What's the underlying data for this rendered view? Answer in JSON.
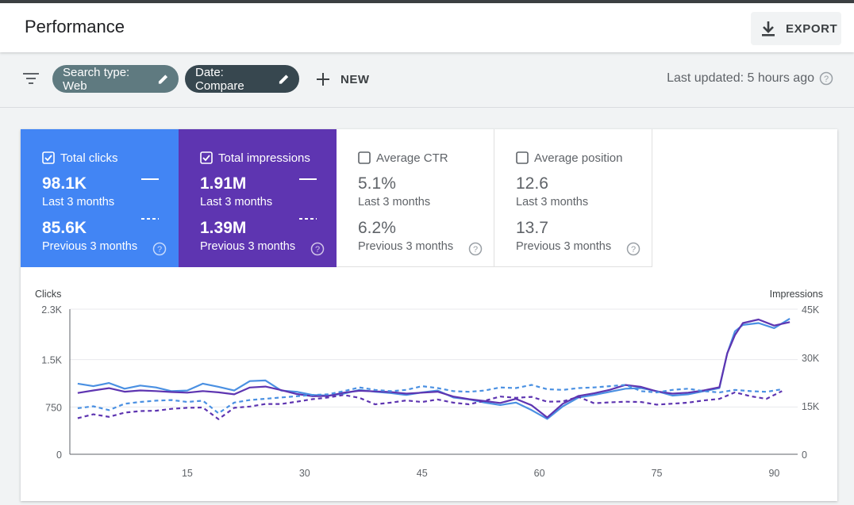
{
  "header": {
    "title": "Performance",
    "export_label": "EXPORT"
  },
  "filters": {
    "search_type_chip": "Search type: Web",
    "date_chip": "Date: Compare",
    "new_label": "NEW",
    "last_updated": "Last updated: 5 hours ago"
  },
  "metrics": [
    {
      "label": "Total clicks",
      "current": "98.1K",
      "current_period": "Last 3 months",
      "previous": "85.6K",
      "previous_period": "Previous 3 months",
      "checked": true
    },
    {
      "label": "Total impressions",
      "current": "1.91M",
      "current_period": "Last 3 months",
      "previous": "1.39M",
      "previous_period": "Previous 3 months",
      "checked": true
    },
    {
      "label": "Average CTR",
      "current": "5.1%",
      "current_period": "Last 3 months",
      "previous": "6.2%",
      "previous_period": "Previous 3 months",
      "checked": false
    },
    {
      "label": "Average position",
      "current": "12.6",
      "current_period": "Last 3 months",
      "previous": "13.7",
      "previous_period": "Previous 3 months",
      "checked": false
    }
  ],
  "colors": {
    "clicks": "#4285f4",
    "impressions": "#5e35b1",
    "clicks_line": "#4a90e2",
    "impressions_line": "#5e35b1"
  },
  "chart_data": {
    "type": "line",
    "title": "",
    "ylabel_left": "Clicks",
    "ylabel_right": "Impressions",
    "left_axis": {
      "ylim": [
        0,
        2300
      ],
      "ticks": [
        0,
        750,
        1500,
        2300
      ],
      "tick_labels": [
        "0",
        "750",
        "1.5K",
        "2.3K"
      ]
    },
    "right_axis": {
      "ylim": [
        0,
        45000
      ],
      "ticks": [
        0,
        15000,
        30000,
        45000
      ],
      "tick_labels": [
        "0",
        "15K",
        "30K",
        "45K"
      ]
    },
    "x_ticks": [
      15,
      30,
      45,
      60,
      75,
      90
    ],
    "series": [
      {
        "name": "Clicks (Last 3 months)",
        "axis": "left",
        "style": "solid",
        "color": "#4a90e2",
        "x": [
          1,
          3,
          5,
          7,
          9,
          11,
          13,
          15,
          17,
          19,
          21,
          23,
          25,
          27,
          29,
          31,
          33,
          35,
          37,
          39,
          41,
          43,
          45,
          47,
          49,
          51,
          53,
          55,
          57,
          59,
          61,
          63,
          65,
          67,
          69,
          71,
          73,
          75,
          77,
          79,
          81,
          83,
          84,
          85,
          86,
          88,
          90,
          92
        ],
        "y": [
          1120,
          1080,
          1130,
          1040,
          1090,
          1060,
          1000,
          1010,
          1120,
          1070,
          1010,
          1160,
          1170,
          1010,
          990,
          940,
          930,
          960,
          1020,
          990,
          970,
          940,
          980,
          1010,
          900,
          870,
          820,
          780,
          820,
          700,
          560,
          760,
          900,
          940,
          990,
          1040,
          1050,
          1000,
          930,
          950,
          1000,
          1050,
          1600,
          1950,
          2050,
          2080,
          2000,
          2150
        ]
      },
      {
        "name": "Impressions (Last 3 months)",
        "axis": "right",
        "style": "solid",
        "color": "#5e35b1",
        "x": [
          1,
          3,
          5,
          7,
          9,
          11,
          13,
          15,
          17,
          19,
          21,
          23,
          25,
          27,
          29,
          31,
          33,
          35,
          37,
          39,
          41,
          43,
          45,
          47,
          49,
          51,
          53,
          55,
          57,
          59,
          61,
          63,
          65,
          67,
          69,
          71,
          73,
          75,
          77,
          79,
          81,
          83,
          84,
          85,
          86,
          88,
          90,
          92
        ],
        "y": [
          19000,
          19800,
          20500,
          19400,
          19800,
          19600,
          19300,
          19100,
          19600,
          19200,
          18600,
          20700,
          21000,
          19900,
          18700,
          18000,
          18100,
          19100,
          19700,
          19500,
          19300,
          18800,
          19100,
          19400,
          17900,
          17100,
          16500,
          15900,
          17200,
          15200,
          11400,
          15700,
          18100,
          18900,
          20000,
          21500,
          20900,
          19500,
          18800,
          19100,
          19800,
          20800,
          31300,
          37000,
          40700,
          41800,
          39900,
          41000
        ]
      },
      {
        "name": "Clicks (Previous 3 months)",
        "axis": "left",
        "style": "dashed",
        "color": "#4a90e2",
        "x": [
          1,
          3,
          5,
          7,
          9,
          11,
          13,
          15,
          17,
          19,
          21,
          23,
          25,
          27,
          29,
          31,
          33,
          35,
          37,
          39,
          41,
          43,
          45,
          47,
          49,
          51,
          53,
          55,
          57,
          59,
          61,
          63,
          65,
          67,
          69,
          71,
          73,
          75,
          77,
          79,
          81,
          83,
          85,
          87,
          89,
          91
        ],
        "y": [
          730,
          760,
          700,
          800,
          830,
          850,
          860,
          830,
          850,
          650,
          820,
          860,
          880,
          900,
          920,
          940,
          950,
          1000,
          1060,
          1020,
          1000,
          1020,
          1080,
          1050,
          1000,
          990,
          1010,
          1060,
          1050,
          1100,
          1030,
          1020,
          1050,
          1060,
          1080,
          1100,
          1000,
          980,
          1020,
          1040,
          1000,
          980,
          1020,
          1000,
          990,
          1030
        ]
      },
      {
        "name": "Impressions (Previous 3 months)",
        "axis": "right",
        "style": "dashed",
        "color": "#5e35b1",
        "x": [
          1,
          3,
          5,
          7,
          9,
          11,
          13,
          15,
          17,
          19,
          21,
          23,
          25,
          27,
          29,
          31,
          33,
          35,
          37,
          39,
          41,
          43,
          45,
          47,
          49,
          51,
          53,
          55,
          57,
          59,
          61,
          63,
          65,
          67,
          69,
          71,
          73,
          75,
          77,
          79,
          81,
          83,
          85,
          87,
          89,
          91
        ],
        "y": [
          11200,
          12400,
          11600,
          12900,
          13400,
          13500,
          14100,
          14400,
          14500,
          10900,
          14400,
          14800,
          15600,
          15600,
          16300,
          17100,
          17600,
          18400,
          17500,
          15500,
          16000,
          16700,
          16200,
          17000,
          16000,
          15500,
          16600,
          17900,
          17500,
          17800,
          16300,
          16400,
          17800,
          15800,
          16100,
          16300,
          16200,
          15400,
          15700,
          16000,
          16700,
          17200,
          19200,
          18000,
          17200,
          19600
        ]
      }
    ]
  }
}
